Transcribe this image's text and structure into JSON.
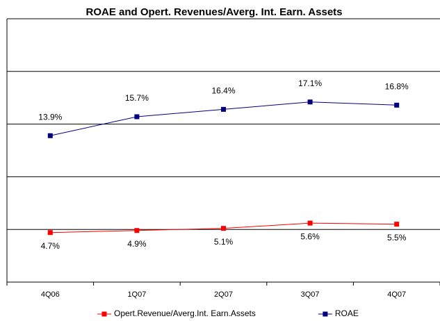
{
  "chart_data": {
    "type": "line",
    "title": "ROAE and Opert. Revenues/Averg. Int. Earn. Assets",
    "categories": [
      "4Q06",
      "1Q07",
      "2Q07",
      "3Q07",
      "4Q07"
    ],
    "series": [
      {
        "name": "Opert.Revenue/Averg.Int. Earn.Assets",
        "color": "#ff0000",
        "values": [
          4.7,
          4.9,
          5.1,
          5.6,
          5.5
        ],
        "value_labels": [
          "4.7%",
          "4.9%",
          "5.1%",
          "5.6%",
          "5.5%"
        ]
      },
      {
        "name": "ROAE",
        "color": "#000080",
        "values": [
          13.9,
          15.7,
          16.4,
          17.1,
          16.8
        ],
        "value_labels": [
          "13.9%",
          "15.7%",
          "16.4%",
          "17.1%",
          "16.8%"
        ]
      }
    ],
    "ylim": [
      0,
      25
    ],
    "yticks": [
      0,
      5,
      10,
      15,
      20,
      25
    ],
    "grid": true,
    "legend": "bottom"
  }
}
